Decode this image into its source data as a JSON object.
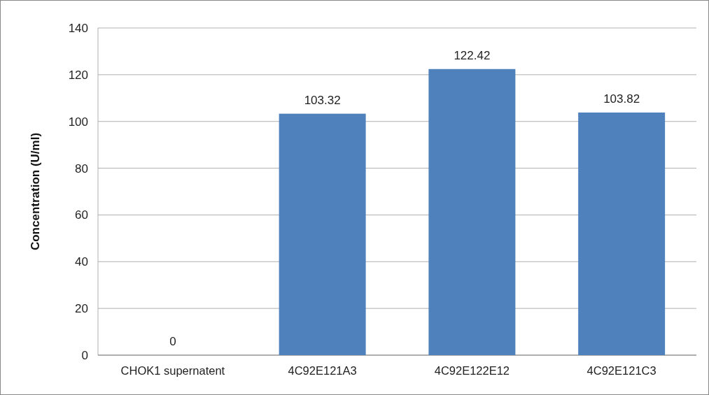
{
  "chart_data": {
    "type": "bar",
    "ylabel": "Concentration (U/ml)",
    "categories": [
      "CHOK1 supernatent",
      "4C92E121A3",
      "4C92E122E12",
      "4C92E121C3"
    ],
    "values": [
      0,
      103.32,
      122.42,
      103.82
    ],
    "color": "#4f81bd",
    "ylim": [
      0,
      140
    ],
    "yticks": [
      0,
      20,
      40,
      60,
      80,
      100,
      120,
      140
    ],
    "grid": "y",
    "data_labels": true
  }
}
